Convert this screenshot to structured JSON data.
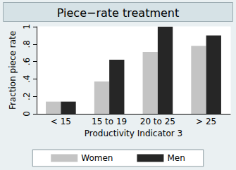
{
  "chart_data": {
    "type": "bar",
    "title": "Piece−rate treatment",
    "x_label": "Productivity Indicator 3",
    "y_label": "Fraction piece rate",
    "categories": [
      "< 15",
      "15 to 19",
      "20 to 25",
      "> 25"
    ],
    "series": [
      {
        "name": "Women",
        "color": "#c4c4c4",
        "values": [
          0.14,
          0.37,
          0.71,
          0.78
        ]
      },
      {
        "name": "Men",
        "color": "#262626",
        "values": [
          0.14,
          0.62,
          1.0,
          0.9
        ]
      }
    ],
    "ylim": [
      0,
      1
    ],
    "yticks": [
      0,
      {
        "value": 0.2,
        "label": ".2"
      },
      {
        "value": 0.4,
        "label": ".4"
      },
      {
        "value": 0.6,
        "label": ".6"
      },
      {
        "value": 0.8,
        "label": ".8"
      },
      1
    ],
    "grid": false,
    "legend": "bottom"
  }
}
